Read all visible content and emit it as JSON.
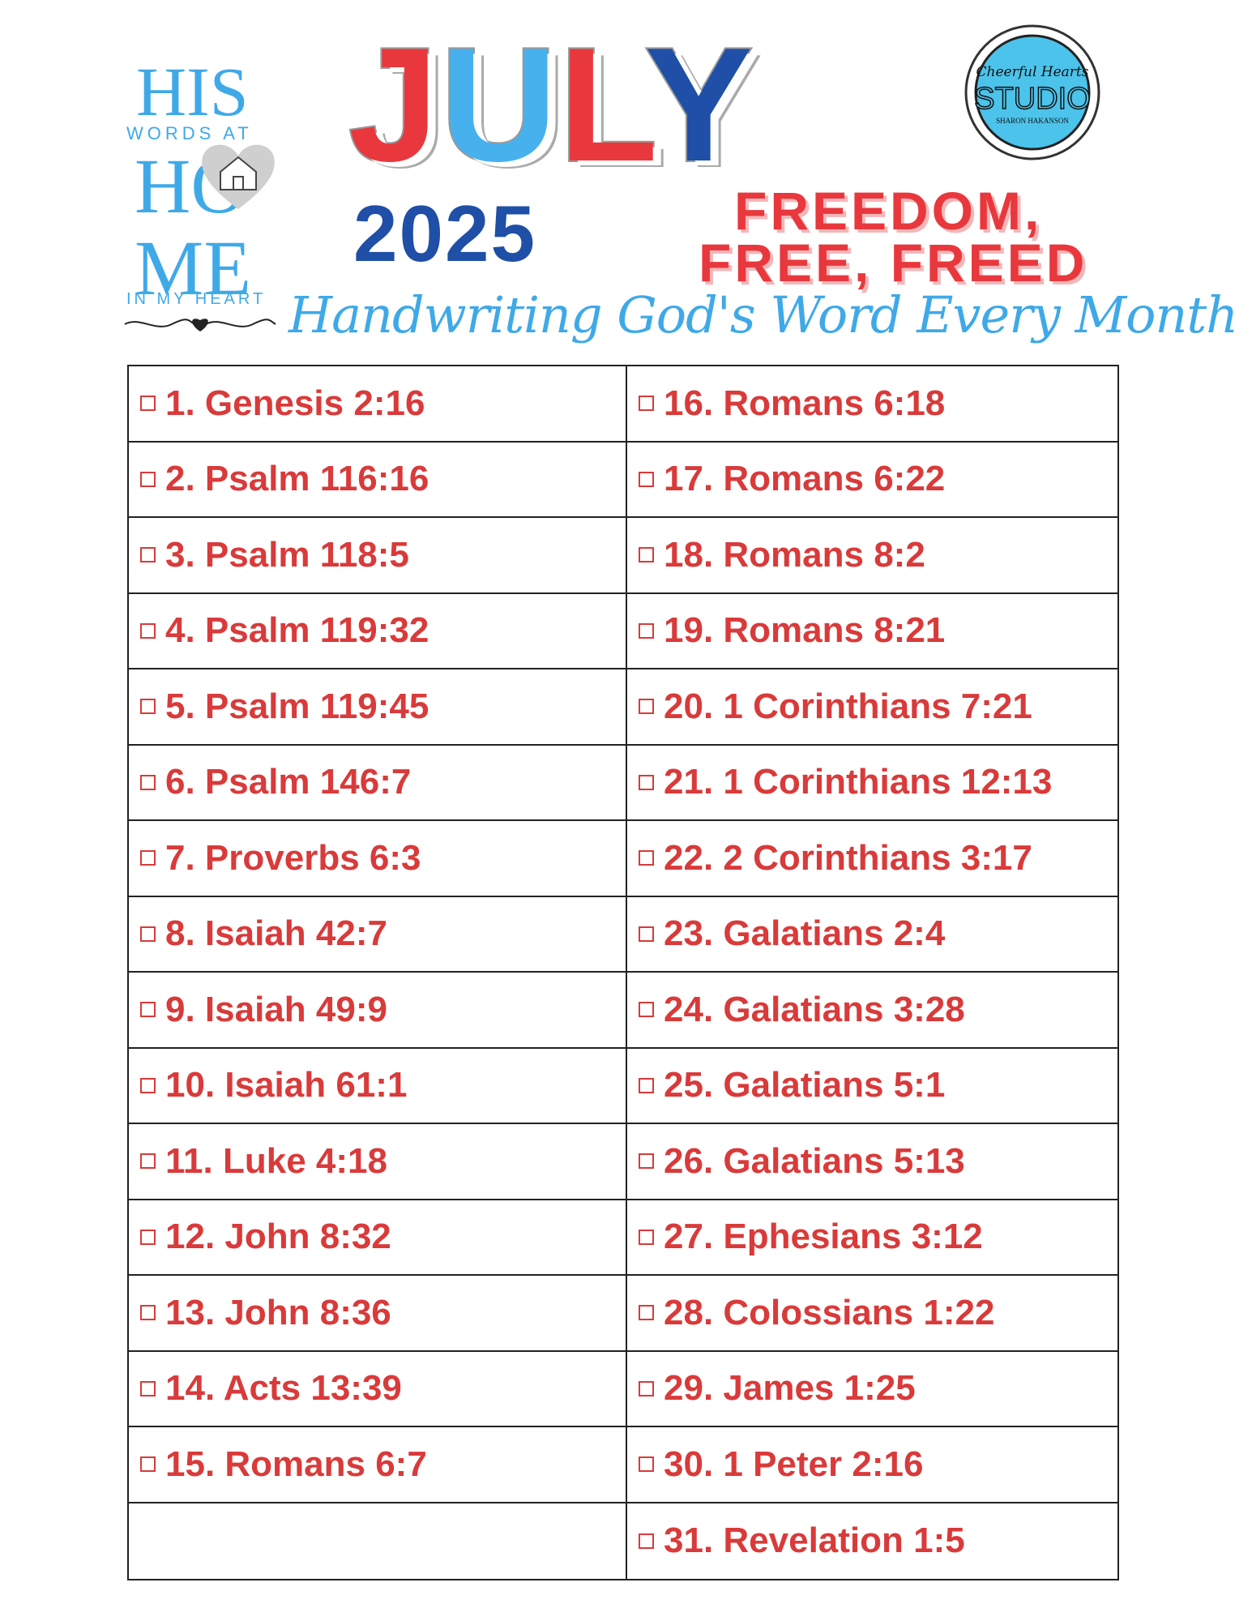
{
  "logo": {
    "line1": "HIS",
    "line2": "WORDS AT",
    "line3": "HOME",
    "line4": "IN MY HEART"
  },
  "header": {
    "title": "JULY",
    "year": "2025",
    "theme_line1": "FREEDOM,",
    "theme_line2": "FREE, FREED",
    "subtitle": "Handwriting God's Word Every Month"
  },
  "studio": {
    "line1": "Cheerful Hearts",
    "line2": "STUDIO",
    "line3": "SHARON HAKANSON"
  },
  "table": {
    "left": [
      "1. Genesis 2:16",
      "2. Psalm 116:16",
      "3. Psalm 118:5",
      "4. Psalm 119:32",
      "5. Psalm 119:45",
      "6. Psalm 146:7",
      "7. Proverbs 6:3",
      "8. Isaiah 42:7",
      "9. Isaiah 49:9",
      "10. Isaiah 61:1",
      "11. Luke 4:18",
      "12. John 8:32",
      "13. John 8:36",
      "14. Acts 13:39",
      "15. Romans 6:7"
    ],
    "right": [
      "16. Romans 6:18",
      "17. Romans 6:22",
      "18. Romans 8:2",
      "19. Romans 8:21",
      "20. 1 Corinthians 7:21",
      "21. 1 Corinthians 12:13",
      "22. 2 Corinthians 3:17",
      "23. Galatians 2:4",
      "24. Galatians 3:28",
      "25. Galatians 5:1",
      "26. Galatians 5:13",
      "27. Ephesians 3:12",
      "28. Colossians 1:22",
      "29. James 1:25",
      "30. 1 Peter 2:16",
      "31. Revelation 1:5"
    ]
  }
}
